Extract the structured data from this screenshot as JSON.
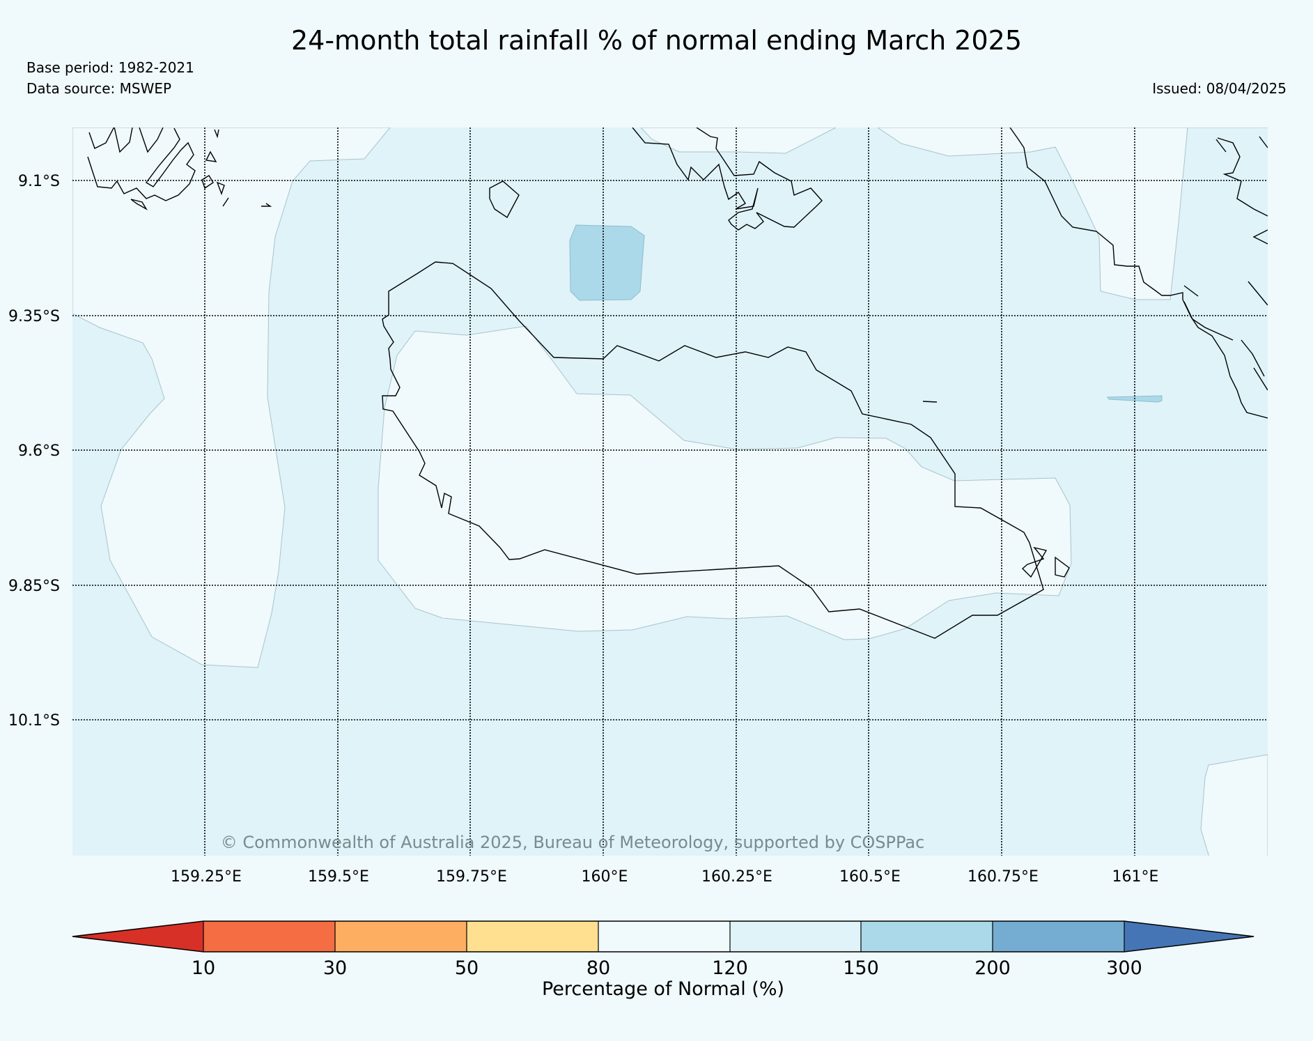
{
  "header": {
    "title": "24-month total rainfall % of normal ending March 2025",
    "base_period": "Base period: 1982-2021",
    "data_source": "Data source: MSWEP",
    "issued": "Issued: 08/04/2025"
  },
  "map": {
    "latitude_labels": [
      "9.1°S",
      "9.35°S",
      "9.6°S",
      "9.85°S",
      "10.1°S"
    ],
    "longitude_labels": [
      "159.25°E",
      "159.5°E",
      "159.75°E",
      "160°E",
      "160.25°E",
      "160.5°E",
      "160.75°E",
      "161°E"
    ],
    "copyright": "© Commonwealth of Australia 2025, Bureau of Meteorology, supported by COSPPac",
    "colors": {
      "band_80_120": "#f0f9fb",
      "band_120_150": "#dff3f8",
      "band_150_200": "#abd9e9",
      "coastline": "#000000"
    }
  },
  "colorbar": {
    "title": "Percentage of Normal (%)",
    "tick_labels": [
      "10",
      "30",
      "50",
      "80",
      "120",
      "150",
      "200",
      "300"
    ],
    "bins": [
      {
        "range": "<10",
        "color": "#d73027"
      },
      {
        "range": "10-30",
        "color": "#f46d43"
      },
      {
        "range": "30-50",
        "color": "#fdae61"
      },
      {
        "range": "50-80",
        "color": "#fee090"
      },
      {
        "range": "80-120",
        "color": "#f0f9fb"
      },
      {
        "range": "120-150",
        "color": "#dff3f8"
      },
      {
        "range": "150-200",
        "color": "#abd9e9"
      },
      {
        "range": "200-300",
        "color": "#74add1"
      },
      {
        "range": ">300",
        "color": "#4575b4"
      }
    ]
  }
}
